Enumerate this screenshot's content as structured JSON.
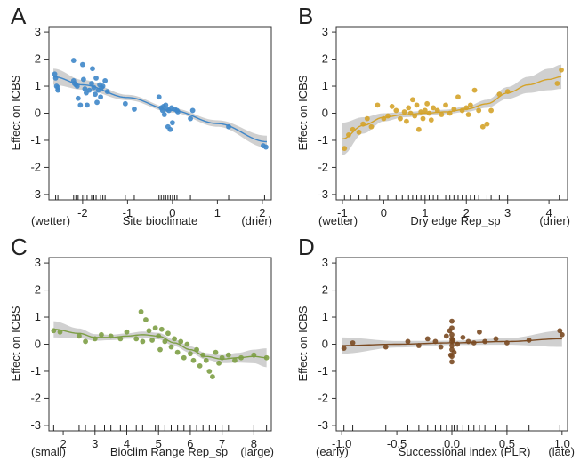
{
  "chart_data": [
    {
      "panel": "A",
      "type": "scatter",
      "title": "",
      "xlabel": "Site bioclimate",
      "x_left_note": "(wetter)",
      "x_right_note": "(drier)",
      "ylabel": "Effect on ICBS",
      "xlim": [
        -2.75,
        2.2
      ],
      "ylim": [
        -3.2,
        3.2
      ],
      "xticks": [
        -2,
        -1,
        0,
        1,
        2
      ],
      "yticks": [
        -3,
        -2,
        -1,
        0,
        1,
        2,
        3
      ],
      "color": "#3f87c9",
      "fit": {
        "x": [
          -2.65,
          -2.0,
          -1.0,
          0.0,
          1.0,
          2.1
        ],
        "y": [
          1.35,
          1.05,
          0.58,
          0.1,
          -0.38,
          -1.05
        ],
        "band": [
          0.3,
          0.18,
          0.1,
          0.08,
          0.12,
          0.22
        ]
      },
      "points": {
        "x": [
          -2.62,
          -2.6,
          -2.58,
          -2.55,
          -2.55,
          -2.2,
          -2.2,
          -2.18,
          -2.15,
          -2.12,
          -2.1,
          -2.05,
          -2.0,
          -1.98,
          -1.95,
          -1.92,
          -1.9,
          -1.85,
          -1.8,
          -1.78,
          -1.75,
          -1.72,
          -1.7,
          -1.68,
          -1.65,
          -1.62,
          -1.6,
          -1.58,
          -1.55,
          -1.5,
          -1.45,
          -1.05,
          -0.85,
          -0.3,
          -0.25,
          -0.22,
          -0.2,
          -0.18,
          -0.15,
          -0.12,
          -0.1,
          -0.08,
          -0.05,
          -0.02,
          0.0,
          0.05,
          0.1,
          0.12,
          0.4,
          0.45,
          1.25,
          2.02,
          2.08
        ],
        "y": [
          1.45,
          1.3,
          1.0,
          0.95,
          0.85,
          1.95,
          1.2,
          1.1,
          1.05,
          1.0,
          0.55,
          0.3,
          1.8,
          1.25,
          0.9,
          0.75,
          0.3,
          0.85,
          1.1,
          1.65,
          0.95,
          0.7,
          1.3,
          0.4,
          0.85,
          1.05,
          0.6,
          0.95,
          1.0,
          1.2,
          0.8,
          0.35,
          0.15,
          0.6,
          0.2,
          0.1,
          0.25,
          -0.05,
          0.3,
          0.15,
          -0.5,
          0.1,
          -0.6,
          0.2,
          -0.35,
          0.15,
          0.1,
          0.05,
          -0.2,
          0.1,
          -0.5,
          -1.2,
          -1.25
        ]
      },
      "rug": [
        -2.6,
        -2.55,
        -2.2,
        -2.15,
        -2.1,
        -2.0,
        -1.95,
        -1.9,
        -1.8,
        -1.75,
        -1.7,
        -1.6,
        -1.55,
        -1.5,
        -1.05,
        -0.85,
        -0.3,
        -0.25,
        -0.2,
        -0.15,
        -0.1,
        -0.05,
        0.0,
        0.05,
        0.1,
        0.4,
        1.25,
        2.05
      ]
    },
    {
      "panel": "B",
      "type": "scatter",
      "title": "",
      "xlabel": "Dry edge Rep_sp",
      "x_left_note": "(wetter)",
      "x_right_note": "(drier)",
      "ylabel": "Effect on ICBS",
      "xlim": [
        -1.15,
        4.45
      ],
      "ylim": [
        -3.2,
        3.2
      ],
      "xticks": [
        -1,
        0,
        1,
        2,
        3,
        4
      ],
      "yticks": [
        -3,
        -2,
        -1,
        0,
        1,
        2,
        3
      ],
      "color": "#d4a32a",
      "fit": {
        "x": [
          -1.0,
          -0.5,
          0.0,
          0.5,
          1.0,
          1.5,
          2.0,
          2.5,
          3.0,
          3.5,
          4.0,
          4.3
        ],
        "y": [
          -0.95,
          -0.45,
          -0.15,
          -0.05,
          0.0,
          0.05,
          0.15,
          0.35,
          0.75,
          1.05,
          1.25,
          1.35
        ],
        "band": [
          0.6,
          0.3,
          0.15,
          0.1,
          0.08,
          0.08,
          0.1,
          0.15,
          0.22,
          0.3,
          0.4,
          0.45
        ]
      },
      "points": {
        "x": [
          -0.95,
          -0.85,
          -0.75,
          -0.6,
          -0.5,
          -0.4,
          -0.3,
          -0.15,
          0.0,
          0.1,
          0.2,
          0.3,
          0.4,
          0.5,
          0.55,
          0.6,
          0.65,
          0.7,
          0.75,
          0.8,
          0.85,
          0.9,
          0.95,
          1.0,
          1.05,
          1.1,
          1.15,
          1.2,
          1.3,
          1.4,
          1.5,
          1.6,
          1.7,
          1.8,
          1.9,
          2.0,
          2.05,
          2.1,
          2.2,
          2.3,
          2.4,
          2.5,
          2.6,
          2.8,
          3.0,
          4.2,
          4.3
        ],
        "y": [
          -1.3,
          -0.8,
          -0.6,
          -0.7,
          -0.4,
          -0.2,
          -0.5,
          0.3,
          -0.2,
          -0.1,
          0.25,
          0.1,
          -0.2,
          0.05,
          -0.3,
          0.2,
          0.0,
          0.5,
          -0.1,
          0.3,
          -0.6,
          0.05,
          -0.2,
          0.1,
          0.35,
          0.0,
          -0.25,
          0.2,
          0.1,
          -0.05,
          0.3,
          0.0,
          0.15,
          0.6,
          0.1,
          0.2,
          -0.05,
          0.3,
          0.85,
          0.1,
          -0.5,
          -0.4,
          0.1,
          0.7,
          0.8,
          1.1,
          1.6
        ]
      },
      "rug": [
        -0.95,
        -0.8,
        -0.6,
        -0.4,
        -0.1,
        0.1,
        0.3,
        0.45,
        0.6,
        0.7,
        0.8,
        0.9,
        1.0,
        1.1,
        1.2,
        1.3,
        1.5,
        1.6,
        1.7,
        1.8,
        1.9,
        2.0,
        2.1,
        2.2,
        2.3,
        2.5,
        2.6,
        2.8,
        3.0,
        4.25
      ]
    },
    {
      "panel": "C",
      "type": "scatter",
      "title": "",
      "xlabel": "Bioclim Range Rep_sp",
      "x_left_note": "(small)",
      "x_right_note": "(large)",
      "ylabel": "Effect on ICBS",
      "xlim": [
        1.55,
        8.55
      ],
      "ylim": [
        -3.2,
        3.2
      ],
      "xticks": [
        2,
        3,
        4,
        5,
        6,
        7,
        8
      ],
      "yticks": [
        -3,
        -2,
        -1,
        0,
        1,
        2,
        3
      ],
      "color": "#7d9e45",
      "fit": {
        "x": [
          1.7,
          2.5,
          3.0,
          3.5,
          4.0,
          4.5,
          5.0,
          5.5,
          6.0,
          6.5,
          7.0,
          7.5,
          8.0,
          8.4
        ],
        "y": [
          0.55,
          0.4,
          0.25,
          0.25,
          0.3,
          0.35,
          0.3,
          0.05,
          -0.2,
          -0.45,
          -0.55,
          -0.5,
          -0.45,
          -0.5
        ],
        "band": [
          0.3,
          0.18,
          0.12,
          0.1,
          0.1,
          0.12,
          0.12,
          0.12,
          0.12,
          0.12,
          0.15,
          0.18,
          0.25,
          0.35
        ]
      },
      "points": {
        "x": [
          1.7,
          1.9,
          2.5,
          2.7,
          3.0,
          3.2,
          3.5,
          3.8,
          4.0,
          4.3,
          4.45,
          4.5,
          4.6,
          4.7,
          4.8,
          4.9,
          5.0,
          5.05,
          5.1,
          5.2,
          5.3,
          5.4,
          5.5,
          5.6,
          5.7,
          5.8,
          5.9,
          6.0,
          6.1,
          6.2,
          6.3,
          6.4,
          6.5,
          6.6,
          6.7,
          6.8,
          6.9,
          7.0,
          7.2,
          7.4,
          7.6,
          8.0,
          8.4
        ],
        "y": [
          0.5,
          0.45,
          0.3,
          0.1,
          0.2,
          0.35,
          0.3,
          0.2,
          0.45,
          0.2,
          1.2,
          0.1,
          0.9,
          0.5,
          0.15,
          0.6,
          0.3,
          -0.2,
          0.55,
          0.1,
          0.4,
          -0.1,
          0.2,
          -0.3,
          0.1,
          -0.5,
          0.0,
          -0.35,
          -0.6,
          -0.2,
          -0.8,
          -0.4,
          -0.6,
          -1.0,
          -1.2,
          -0.3,
          -0.7,
          -0.5,
          -0.4,
          -0.6,
          -0.5,
          -0.4,
          -0.5
        ]
      },
      "rug": [
        1.7,
        1.9,
        2.5,
        2.7,
        3.0,
        3.3,
        3.5,
        3.8,
        4.0,
        4.3,
        4.5,
        4.7,
        4.9,
        5.0,
        5.2,
        5.4,
        5.6,
        5.8,
        6.0,
        6.2,
        6.4,
        6.6,
        6.8,
        7.0,
        7.2,
        7.5,
        8.0,
        8.4
      ]
    },
    {
      "panel": "D",
      "type": "scatter",
      "title": "",
      "xlabel": "Successional index (PLR)",
      "x_left_note": "(early)",
      "x_right_note": "(late)",
      "ylabel": "Effect on ICBS",
      "xlim": [
        -1.05,
        1.05
      ],
      "ylim": [
        -3.2,
        3.2
      ],
      "xticks": [
        -1.0,
        -0.5,
        0.0,
        0.5,
        1.0
      ],
      "xtick_labels": [
        "-1.0",
        "-0.5",
        "0.0",
        "0.5",
        "1.0"
      ],
      "yticks": [
        -3,
        -2,
        -1,
        0,
        1,
        2,
        3
      ],
      "color": "#7a4a22",
      "fit": {
        "x": [
          -1.0,
          -0.5,
          0.0,
          0.5,
          1.0
        ],
        "y": [
          -0.05,
          0.0,
          0.05,
          0.1,
          0.2
        ],
        "band": [
          0.3,
          0.12,
          0.08,
          0.12,
          0.3
        ]
      },
      "points": {
        "x": [
          -0.98,
          -0.9,
          -0.6,
          -0.4,
          -0.3,
          -0.22,
          -0.15,
          -0.1,
          -0.05,
          -0.02,
          -0.01,
          0.0,
          0.0,
          0.0,
          0.0,
          0.0,
          0.0,
          0.0,
          0.0,
          0.0,
          0.01,
          0.02,
          0.05,
          0.1,
          0.15,
          0.2,
          0.25,
          0.3,
          0.4,
          0.5,
          0.7,
          0.98,
          1.0
        ],
        "y": [
          -0.15,
          0.05,
          -0.1,
          0.1,
          -0.05,
          0.2,
          0.1,
          -0.1,
          0.3,
          0.5,
          -0.4,
          0.85,
          0.6,
          0.35,
          0.2,
          0.1,
          -0.05,
          -0.2,
          -0.45,
          -0.65,
          0.15,
          -0.3,
          0.0,
          0.25,
          0.1,
          0.05,
          0.45,
          0.1,
          0.2,
          0.05,
          0.15,
          0.5,
          0.35
        ]
      },
      "rug": [
        -0.98,
        -0.9,
        -0.6,
        -0.4,
        -0.3,
        -0.22,
        -0.15,
        -0.1,
        -0.05,
        0.0,
        0.02,
        0.05,
        0.1,
        0.15,
        0.2,
        0.25,
        0.3,
        0.4,
        0.5,
        0.7,
        0.98
      ]
    }
  ]
}
